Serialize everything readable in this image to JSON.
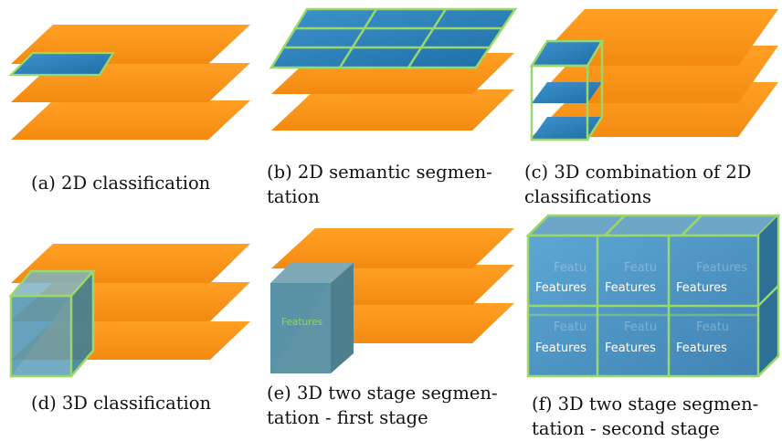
{
  "panels": [
    {
      "id": "a",
      "caption": "(a) 2D classification"
    },
    {
      "id": "b",
      "caption_line1": "(b) 2D semantic segmen-",
      "caption_line2": "tation"
    },
    {
      "id": "c",
      "caption_line1": "(c) 3D combination of 2D",
      "caption_line2": "classifications"
    },
    {
      "id": "d",
      "caption": "(d) 3D classification"
    },
    {
      "id": "e",
      "caption_line1": "(e) 3D two stage segmen-",
      "caption_line2": "tation - first stage",
      "box_label": "Features"
    },
    {
      "id": "f",
      "caption_line1": "(f) 3D two stage segmen-",
      "caption_line2": "tation - second stage",
      "cell_label": "Features"
    }
  ],
  "colors": {
    "plane": "#f7941d",
    "plane_dark": "#e8790f",
    "block": "#2e7fb8",
    "block_light": "#5aa7d8",
    "outline": "#9bd86a",
    "feature_text_e": "#8fd25a",
    "feature_text_f": "#ffffff"
  }
}
